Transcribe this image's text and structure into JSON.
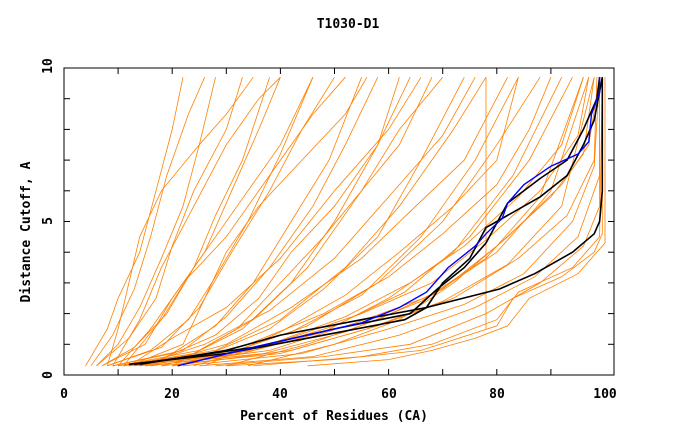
{
  "chart_data": {
    "type": "line",
    "title": "T1030-D1",
    "xlabel": "Percent of Residues (CA)",
    "ylabel": "Distance Cutoff, A",
    "xlim": [
      0,
      100
    ],
    "ylim": [
      0,
      10
    ],
    "xticks": [
      "0",
      "20",
      "40",
      "60",
      "80",
      "100"
    ],
    "yticks": [
      "0",
      "5",
      "10"
    ],
    "grid": false,
    "colors": {
      "orange": "#ff8000",
      "black": "#000000",
      "blue": "#0000ff"
    },
    "series_orange": [
      [
        [
          4,
          0.3
        ],
        [
          8,
          1.5
        ],
        [
          10,
          2.5
        ],
        [
          14,
          4
        ],
        [
          17,
          6
        ],
        [
          20,
          8
        ],
        [
          22,
          9.7
        ]
      ],
      [
        [
          5,
          0.3
        ],
        [
          9,
          1.3
        ],
        [
          13,
          2.8
        ],
        [
          16,
          4.5
        ],
        [
          19,
          6.5
        ],
        [
          23,
          8.5
        ],
        [
          26,
          9.7
        ]
      ],
      [
        [
          6,
          0.3
        ],
        [
          10,
          1
        ],
        [
          14,
          2.2
        ],
        [
          18,
          3.8
        ],
        [
          22,
          5.5
        ],
        [
          25,
          7.5
        ],
        [
          28,
          9.7
        ]
      ],
      [
        [
          6,
          0.3
        ],
        [
          12,
          1.2
        ],
        [
          17,
          2.5
        ],
        [
          20,
          4.2
        ],
        [
          24,
          6
        ],
        [
          30,
          8
        ],
        [
          33,
          9.7
        ]
      ],
      [
        [
          7,
          0.3
        ],
        [
          13,
          0.9
        ],
        [
          19,
          2
        ],
        [
          24,
          3.5
        ],
        [
          28,
          5.2
        ],
        [
          33,
          7
        ],
        [
          38,
          9.7
        ]
      ],
      [
        [
          7,
          0.3
        ],
        [
          15,
          1
        ],
        [
          20,
          2.5
        ],
        [
          26,
          4
        ],
        [
          31,
          6
        ],
        [
          36,
          8
        ],
        [
          40,
          9.7
        ]
      ],
      [
        [
          8,
          0.3
        ],
        [
          16,
          0.8
        ],
        [
          23,
          1.8
        ],
        [
          28,
          3.2
        ],
        [
          34,
          5
        ],
        [
          40,
          7.2
        ],
        [
          46,
          9.7
        ]
      ],
      [
        [
          8,
          0.3
        ],
        [
          18,
          0.9
        ],
        [
          25,
          2.2
        ],
        [
          31,
          4
        ],
        [
          38,
          6
        ],
        [
          44,
          8
        ],
        [
          50,
          9.7
        ]
      ],
      [
        [
          9,
          0.3
        ],
        [
          20,
          0.7
        ],
        [
          28,
          1.6
        ],
        [
          35,
          3
        ],
        [
          42,
          5
        ],
        [
          49,
          7
        ],
        [
          55,
          9.7
        ]
      ],
      [
        [
          9,
          0.3
        ],
        [
          22,
          0.8
        ],
        [
          30,
          1.9
        ],
        [
          38,
          3.5
        ],
        [
          46,
          5.5
        ],
        [
          52,
          7.5
        ],
        [
          58,
          9.7
        ]
      ],
      [
        [
          10,
          0.3
        ],
        [
          24,
          0.7
        ],
        [
          33,
          1.5
        ],
        [
          42,
          3
        ],
        [
          50,
          5
        ],
        [
          58,
          7.5
        ],
        [
          64,
          9.7
        ]
      ],
      [
        [
          10,
          0.3
        ],
        [
          25,
          0.8
        ],
        [
          35,
          1.8
        ],
        [
          45,
          3.5
        ],
        [
          55,
          6
        ],
        [
          62,
          8
        ],
        [
          70,
          9.7
        ]
      ],
      [
        [
          11,
          0.3
        ],
        [
          27,
          0.7
        ],
        [
          38,
          1.5
        ],
        [
          48,
          2.8
        ],
        [
          58,
          4.5
        ],
        [
          66,
          7
        ],
        [
          74,
          9.7
        ]
      ],
      [
        [
          11,
          0.3
        ],
        [
          28,
          0.8
        ],
        [
          40,
          1.8
        ],
        [
          52,
          3.5
        ],
        [
          62,
          5.5
        ],
        [
          72,
          8
        ],
        [
          78,
          9.7
        ]
      ],
      [
        [
          12,
          0.3
        ],
        [
          30,
          0.7
        ],
        [
          42,
          1.4
        ],
        [
          55,
          2.6
        ],
        [
          66,
          4.5
        ],
        [
          76,
          7
        ],
        [
          84,
          9.7
        ]
      ],
      [
        [
          12,
          0.3
        ],
        [
          32,
          0.8
        ],
        [
          45,
          1.6
        ],
        [
          58,
          3
        ],
        [
          70,
          5
        ],
        [
          80,
          7.5
        ],
        [
          88,
          9.7
        ]
      ],
      [
        [
          13,
          0.3
        ],
        [
          33,
          0.7
        ],
        [
          48,
          1.4
        ],
        [
          60,
          2.5
        ],
        [
          72,
          4
        ],
        [
          83,
          6.5
        ],
        [
          92,
          9.7
        ]
      ],
      [
        [
          14,
          0.3
        ],
        [
          35,
          0.8
        ],
        [
          50,
          1.6
        ],
        [
          63,
          2.7
        ],
        [
          75,
          4.5
        ],
        [
          86,
          7
        ],
        [
          94,
          9.7
        ]
      ],
      [
        [
          15,
          0.3
        ],
        [
          37,
          0.7
        ],
        [
          52,
          1.4
        ],
        [
          66,
          2.4
        ],
        [
          78,
          3.8
        ],
        [
          88,
          5.8
        ],
        [
          96,
          9.7
        ]
      ],
      [
        [
          16,
          0.3
        ],
        [
          38,
          0.8
        ],
        [
          54,
          1.7
        ],
        [
          68,
          2.6
        ],
        [
          80,
          4
        ],
        [
          90,
          6
        ],
        [
          97,
          9.7
        ]
      ],
      [
        [
          18,
          0.3
        ],
        [
          40,
          0.7
        ],
        [
          56,
          1.5
        ],
        [
          70,
          2.4
        ],
        [
          82,
          3.6
        ],
        [
          92,
          5.5
        ],
        [
          98,
          9.7
        ]
      ],
      [
        [
          20,
          0.3
        ],
        [
          42,
          0.8
        ],
        [
          58,
          1.6
        ],
        [
          72,
          2.5
        ],
        [
          84,
          3.8
        ],
        [
          93,
          5.2
        ],
        [
          98,
          7
        ],
        [
          98.5,
          9.7
        ]
      ],
      [
        [
          22,
          0.3
        ],
        [
          44,
          0.7
        ],
        [
          60,
          1.5
        ],
        [
          74,
          2.3
        ],
        [
          85,
          3.3
        ],
        [
          94,
          5
        ],
        [
          98,
          6.8
        ],
        [
          99,
          9.7
        ]
      ],
      [
        [
          25,
          0.3
        ],
        [
          46,
          0.6
        ],
        [
          62,
          1.3
        ],
        [
          76,
          2.2
        ],
        [
          87,
          3.2
        ],
        [
          95,
          4.5
        ],
        [
          99,
          6.5
        ],
        [
          99,
          9.7
        ]
      ],
      [
        [
          28,
          0.3
        ],
        [
          48,
          0.6
        ],
        [
          64,
          1
        ],
        [
          78,
          2
        ],
        [
          88,
          3
        ],
        [
          96,
          4.2
        ],
        [
          99,
          5.5
        ],
        [
          99,
          9.7
        ]
      ],
      [
        [
          30,
          0.3
        ],
        [
          50,
          0.5
        ],
        [
          66,
          0.8
        ],
        [
          80,
          1.6
        ],
        [
          83,
          2.5
        ],
        [
          92,
          3.2
        ],
        [
          98,
          4
        ],
        [
          99.5,
          4.6
        ],
        [
          99.5,
          9.7
        ]
      ],
      [
        [
          35,
          0.3
        ],
        [
          55,
          0.6
        ],
        [
          68,
          1
        ],
        [
          80,
          1.8
        ],
        [
          84,
          2.7
        ],
        [
          94,
          3.5
        ],
        [
          99,
          4.5
        ],
        [
          99.5,
          9.7
        ]
      ],
      [
        [
          45,
          0.3
        ],
        [
          60,
          0.5
        ],
        [
          68,
          0.8
        ],
        [
          76,
          1.2
        ],
        [
          82,
          1.6
        ],
        [
          86,
          2.5
        ],
        [
          95,
          3.3
        ],
        [
          100,
          4.3
        ],
        [
          100,
          9.7
        ]
      ],
      [
        [
          8,
          0.3
        ],
        [
          10,
          1.5
        ],
        [
          12,
          3
        ],
        [
          14,
          4.5
        ],
        [
          18,
          6
        ],
        [
          25,
          7.5
        ],
        [
          30,
          8.5
        ],
        [
          35,
          9.7
        ]
      ],
      [
        [
          10,
          0.3
        ],
        [
          16,
          1.5
        ],
        [
          22,
          3
        ],
        [
          30,
          4.5
        ],
        [
          38,
          6.5
        ],
        [
          46,
          8.5
        ],
        [
          52,
          9.7
        ]
      ],
      [
        [
          12,
          0.3
        ],
        [
          20,
          1.2
        ],
        [
          30,
          2.2
        ],
        [
          40,
          3.8
        ],
        [
          50,
          6
        ],
        [
          60,
          8
        ],
        [
          66,
          9.7
        ]
      ],
      [
        [
          14,
          0.3
        ],
        [
          26,
          1
        ],
        [
          38,
          2.1
        ],
        [
          50,
          3.8
        ],
        [
          60,
          5.8
        ],
        [
          70,
          7.8
        ],
        [
          76,
          9.7
        ]
      ],
      [
        [
          16,
          0.3
        ],
        [
          30,
          1
        ],
        [
          42,
          2.2
        ],
        [
          55,
          3.8
        ],
        [
          65,
          5.5
        ],
        [
          74,
          7
        ],
        [
          82,
          9.7
        ]
      ],
      [
        [
          18,
          0.3
        ],
        [
          34,
          1
        ],
        [
          48,
          2
        ],
        [
          60,
          3.2
        ],
        [
          70,
          4.6
        ],
        [
          80,
          6.2
        ],
        [
          86,
          8
        ],
        [
          90,
          9.7
        ]
      ],
      [
        [
          20,
          0.3
        ],
        [
          38,
          1
        ],
        [
          52,
          1.9
        ],
        [
          64,
          3
        ],
        [
          74,
          4.2
        ],
        [
          84,
          5.8
        ],
        [
          92,
          7.5
        ],
        [
          96,
          9.7
        ]
      ],
      [
        [
          24,
          0.3
        ],
        [
          40,
          1.1
        ],
        [
          55,
          2
        ],
        [
          68,
          3
        ],
        [
          78,
          4.4
        ],
        [
          88,
          6
        ],
        [
          95,
          7.8
        ],
        [
          97,
          9.7
        ]
      ],
      [
        [
          15,
          0.3
        ],
        [
          28,
          1.3
        ],
        [
          36,
          2.5
        ],
        [
          42,
          4
        ],
        [
          50,
          5.5
        ],
        [
          58,
          7.5
        ],
        [
          62,
          9.7
        ]
      ],
      [
        [
          20,
          0.3
        ],
        [
          32,
          1.5
        ],
        [
          40,
          3
        ],
        [
          48,
          4.5
        ],
        [
          55,
          6
        ],
        [
          62,
          7.5
        ],
        [
          68,
          9.7
        ]
      ],
      [
        [
          26,
          0.3
        ],
        [
          40,
          1.4
        ],
        [
          52,
          2.6
        ],
        [
          62,
          4
        ],
        [
          72,
          5.5
        ],
        [
          80,
          7
        ],
        [
          84,
          9.7
        ]
      ],
      [
        [
          9,
          0.3
        ],
        [
          14,
          1.8
        ],
        [
          18,
          3.5
        ],
        [
          24,
          5.5
        ],
        [
          30,
          7.5
        ],
        [
          36,
          9
        ],
        [
          40,
          9.7
        ]
      ],
      [
        [
          11,
          0.3
        ],
        [
          18,
          1.8
        ],
        [
          24,
          3.5
        ],
        [
          32,
          5.5
        ],
        [
          40,
          7.5
        ],
        [
          46,
          9.7
        ]
      ],
      [
        [
          30,
          0.3
        ],
        [
          45,
          1
        ],
        [
          58,
          1.8
        ],
        [
          70,
          2.8
        ],
        [
          80,
          4.2
        ],
        [
          90,
          5.8
        ],
        [
          96,
          7.2
        ],
        [
          98,
          9.7
        ]
      ],
      [
        [
          34,
          0.3
        ],
        [
          50,
          1
        ],
        [
          62,
          1.8
        ],
        [
          72,
          3
        ],
        [
          82,
          4.5
        ],
        [
          92,
          6.2
        ],
        [
          97,
          7.5
        ],
        [
          99,
          9.7
        ]
      ],
      [
        [
          78,
          1.5
        ],
        [
          78,
          9.7
        ]
      ],
      [
        [
          12,
          0.3
        ],
        [
          22,
          1
        ],
        [
          26,
          2.5
        ],
        [
          30,
          4
        ],
        [
          36,
          5.5
        ],
        [
          44,
          7
        ],
        [
          52,
          8.5
        ],
        [
          56,
          9.7
        ]
      ]
    ],
    "series_black": [
      [
        [
          12,
          0.35
        ],
        [
          30,
          0.7
        ],
        [
          45,
          1.2
        ],
        [
          63,
          1.8
        ],
        [
          67,
          2.2
        ],
        [
          80.5,
          2.8
        ],
        [
          87,
          3.3
        ],
        [
          94,
          4.0
        ],
        [
          98,
          4.6
        ],
        [
          99,
          5.0
        ],
        [
          99.5,
          6.0
        ],
        [
          99.5,
          9.7
        ]
      ],
      [
        [
          14,
          0.35
        ],
        [
          30,
          0.8
        ],
        [
          40,
          1.3
        ],
        [
          55,
          1.8
        ],
        [
          67,
          2.2
        ],
        [
          70,
          3.0
        ],
        [
          75,
          3.8
        ],
        [
          78,
          4.8
        ],
        [
          80,
          5.0
        ],
        [
          88,
          5.8
        ],
        [
          93,
          6.5
        ],
        [
          96,
          7.5
        ],
        [
          98,
          8.3
        ],
        [
          99.5,
          9.7
        ]
      ],
      [
        [
          13,
          0.35
        ],
        [
          35,
          0.9
        ],
        [
          50,
          1.5
        ],
        [
          64,
          2.0
        ],
        [
          69,
          2.8
        ],
        [
          74,
          3.5
        ],
        [
          78,
          4.3
        ],
        [
          82,
          5.6
        ],
        [
          88,
          6.4
        ],
        [
          93,
          7.0
        ],
        [
          96,
          8.0
        ],
        [
          98.5,
          9.0
        ],
        [
          99,
          9.7
        ]
      ]
    ],
    "series_blue": [
      [
        [
          21,
          0.3
        ],
        [
          35,
          0.9
        ],
        [
          45,
          1.3
        ],
        [
          55,
          1.7
        ],
        [
          62,
          2.2
        ],
        [
          67,
          2.7
        ],
        [
          71,
          3.5
        ],
        [
          76,
          4.2
        ],
        [
          78,
          4.6
        ],
        [
          81,
          5.1
        ],
        [
          82,
          5.6
        ],
        [
          85,
          6.2
        ],
        [
          90,
          6.8
        ],
        [
          95,
          7.2
        ],
        [
          97,
          7.6
        ],
        [
          97.5,
          8.5
        ],
        [
          99,
          9.2
        ],
        [
          99,
          9.7
        ]
      ]
    ]
  }
}
